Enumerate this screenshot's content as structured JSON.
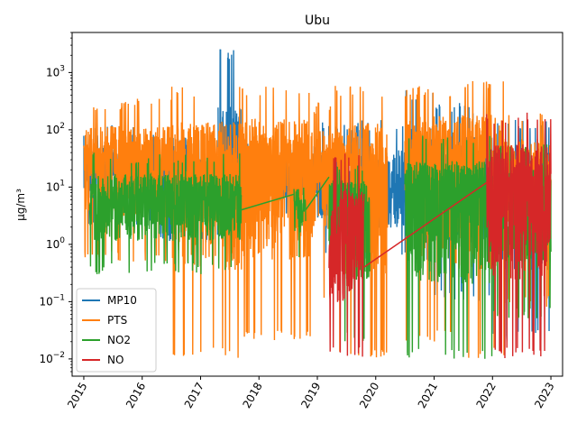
{
  "chart_data": {
    "type": "line",
    "title": "Ubu",
    "xlabel": "",
    "ylabel": "µg/m³",
    "yscale": "log",
    "ylim": [
      0.005,
      5000
    ],
    "xlim": [
      2014.8,
      2023.2
    ],
    "x_ticks": [
      "2015",
      "2016",
      "2017",
      "2018",
      "2019",
      "2020",
      "2021",
      "2022",
      "2023"
    ],
    "y_ticks": [
      {
        "value": 0.01,
        "base": "10",
        "exp": "−2"
      },
      {
        "value": 0.1,
        "base": "10",
        "exp": "−1"
      },
      {
        "value": 1,
        "base": "10",
        "exp": "0"
      },
      {
        "value": 10,
        "base": "10",
        "exp": "1"
      },
      {
        "value": 100,
        "base": "10",
        "exp": "2"
      },
      {
        "value": 1000,
        "base": "10",
        "exp": "3"
      }
    ],
    "grid": false,
    "legend_position": "lower-left",
    "series": [
      {
        "name": "MP10",
        "color": "#1f77b4",
        "segments": [
          {
            "start": 2015.0,
            "end": 2016.2,
            "low": 2.0,
            "high": 120,
            "mid": 20
          },
          {
            "start": 2016.2,
            "end": 2017.3,
            "low": 1.0,
            "high": 80,
            "mid": 10
          },
          {
            "start": 2017.3,
            "end": 2017.7,
            "low": 1.0,
            "high": 2700,
            "mid": 15
          },
          {
            "start": 2017.7,
            "end": 2019.0,
            "low": 3.0,
            "high": 60,
            "mid": 15
          },
          {
            "start": 2019.0,
            "end": 2020.5,
            "low": 0.5,
            "high": 150,
            "mid": 10
          },
          {
            "start": 2020.5,
            "end": 2021.0,
            "low": 0.5,
            "high": 500,
            "mid": 20
          },
          {
            "start": 2021.0,
            "end": 2022.0,
            "low": 0.1,
            "high": 300,
            "mid": 15
          },
          {
            "start": 2022.0,
            "end": 2023.0,
            "low": 0.02,
            "high": 150,
            "mid": 10
          }
        ]
      },
      {
        "name": "PTS",
        "color": "#ff7f0e",
        "segments": [
          {
            "start": 2015.0,
            "end": 2016.5,
            "low": 0.5,
            "high": 350,
            "mid": 30
          },
          {
            "start": 2016.5,
            "end": 2017.7,
            "low": 0.01,
            "high": 600,
            "mid": 25
          },
          {
            "start": 2017.7,
            "end": 2018.9,
            "low": 0.02,
            "high": 600,
            "mid": 30
          },
          {
            "start": 2018.9,
            "end": 2019.3,
            "low": 0.1,
            "high": 300,
            "mid": 25
          },
          {
            "start": 2019.3,
            "end": 2020.2,
            "low": 0.01,
            "high": 600,
            "mid": 20
          },
          {
            "start": 2020.5,
            "end": 2021.3,
            "low": 0.02,
            "high": 600,
            "mid": 40
          },
          {
            "start": 2021.3,
            "end": 2022.2,
            "low": 0.01,
            "high": 800,
            "mid": 30
          },
          {
            "start": 2022.2,
            "end": 2023.0,
            "low": 0.08,
            "high": 200,
            "mid": 20
          }
        ]
      },
      {
        "name": "NO2",
        "color": "#2ca02c",
        "segments": [
          {
            "start": 2015.1,
            "end": 2017.7,
            "low": 0.3,
            "high": 40,
            "mid": 6
          },
          {
            "start": 2018.6,
            "end": 2018.8,
            "low": 0.5,
            "high": 10,
            "mid": 4
          },
          {
            "start": 2019.2,
            "end": 2019.9,
            "low": 0.02,
            "high": 30,
            "mid": 5
          },
          {
            "start": 2020.5,
            "end": 2022.0,
            "low": 0.01,
            "high": 80,
            "mid": 8
          },
          {
            "start": 2022.0,
            "end": 2023.0,
            "low": 0.05,
            "high": 60,
            "mid": 8
          }
        ],
        "connectors": [
          [
            2017.7,
            4.0,
            2018.6,
            7.5
          ],
          [
            2018.8,
            4.0,
            2019.2,
            15.0
          ]
        ]
      },
      {
        "name": "NO",
        "color": "#d62728",
        "segments": [
          {
            "start": 2019.2,
            "end": 2019.8,
            "low": 0.01,
            "high": 40,
            "mid": 1.5
          },
          {
            "start": 2021.9,
            "end": 2023.0,
            "low": 0.01,
            "high": 200,
            "mid": 12
          }
        ],
        "connectors": [
          [
            2019.8,
            0.4,
            2021.9,
            12.0
          ]
        ]
      }
    ]
  }
}
